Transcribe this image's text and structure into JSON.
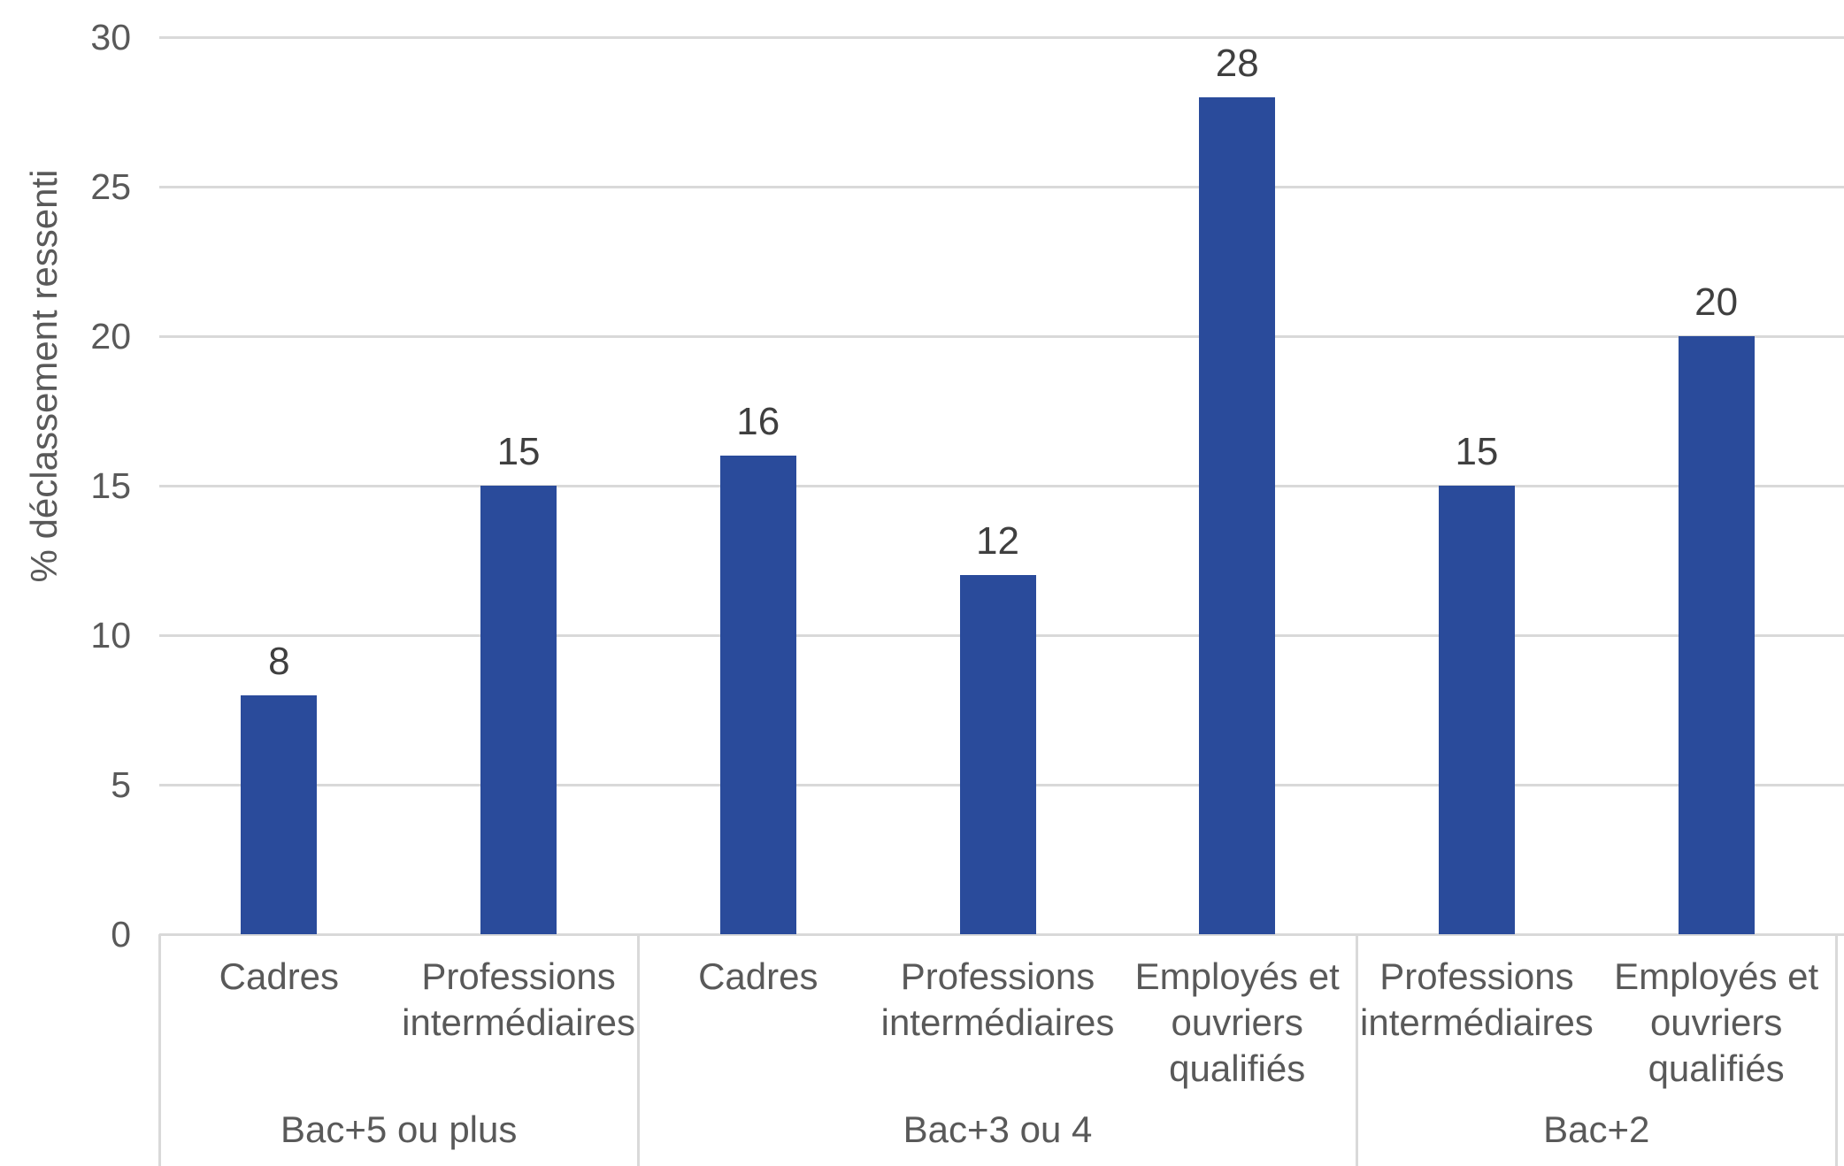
{
  "chart_data": {
    "type": "bar",
    "title": "",
    "ylabel": "% déclassement ressenti",
    "xlabel": "",
    "ylim": [
      0,
      30
    ],
    "yticks": [
      0,
      5,
      10,
      15,
      20,
      25,
      30
    ],
    "grid": true,
    "legend_position": "none",
    "bar_color": "#2a4b9b",
    "gridline_color": "#d9d9d9",
    "axis_text_color": "#595959",
    "data_label_color": "#3f3f3f",
    "groups": [
      {
        "label": "Bac+5 ou plus",
        "bars": [
          {
            "category": "Cadres",
            "value": 8
          },
          {
            "category": "Professions intermédiaires",
            "value": 15
          }
        ]
      },
      {
        "label": "Bac+3 ou 4",
        "bars": [
          {
            "category": "Cadres",
            "value": 16
          },
          {
            "category": "Professions intermédiaires",
            "value": 12
          },
          {
            "category": "Employés et ouvriers qualifiés",
            "value": 28
          }
        ]
      },
      {
        "label": "Bac+2",
        "bars": [
          {
            "category": "Professions intermédiaires",
            "value": 15
          },
          {
            "category": "Employés et ouvriers qualifiés",
            "value": 20
          }
        ]
      }
    ]
  }
}
